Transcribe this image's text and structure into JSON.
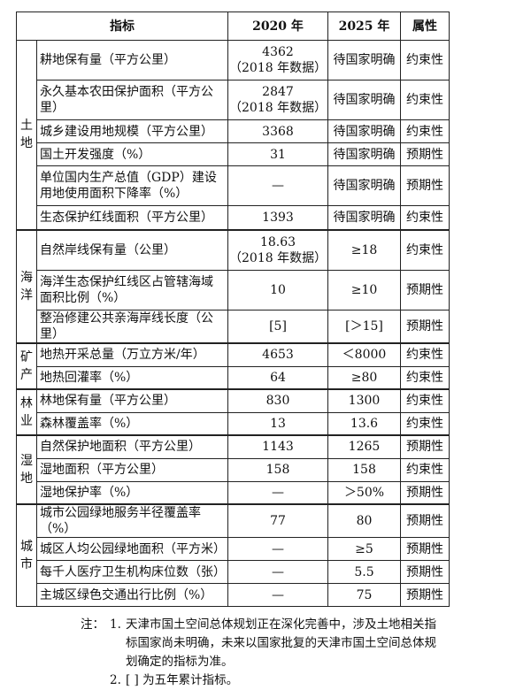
{
  "header": {
    "indicator": "指标",
    "y2020": "2020 年",
    "y2025": "2025 年",
    "attribute": "属性"
  },
  "sections": [
    {
      "category": "土地",
      "rows": [
        {
          "indicator": "耕地保有量（平方公里）",
          "v2020": "4362",
          "v2020_note": "（2018 年数据）",
          "v2025": "待国家明确",
          "attr": "约束性"
        },
        {
          "indicator": "永久基本农田保护面积（平方公里）",
          "v2020": "2847",
          "v2020_note": "（2018 年数据）",
          "v2025": "待国家明确",
          "attr": "约束性"
        },
        {
          "indicator": "城乡建设用地规模（平方公里）",
          "v2020": "3368",
          "v2025": "待国家明确",
          "attr": "约束性"
        },
        {
          "indicator": "国土开发强度（%）",
          "v2020": "31",
          "v2025": "待国家明确",
          "attr": "预期性"
        },
        {
          "indicator": "单位国内生产总值（GDP）建设用地使用面积下降率（%）",
          "v2020": "—",
          "v2025": "待国家明确",
          "attr": "预期性"
        },
        {
          "indicator": "生态保护红线面积（平方公里）",
          "v2020": "1393",
          "v2025": "待国家明确",
          "attr": "约束性"
        }
      ]
    },
    {
      "category": "海洋",
      "rows": [
        {
          "indicator": "自然岸线保有量（公里）",
          "v2020": "18.63",
          "v2020_note": "（2018 年数据）",
          "v2025": "≥18",
          "attr": "约束性"
        },
        {
          "indicator": "海洋生态保护红线区占管辖海域面积比例（%）",
          "v2020": "10",
          "v2025": "≥10",
          "attr": "预期性"
        },
        {
          "indicator": "整治修建公共亲海岸线长度（公里）",
          "v2020": "[5]",
          "v2025": "[＞15]",
          "attr": "预期性"
        }
      ]
    },
    {
      "category": "矿产",
      "rows": [
        {
          "indicator": "地热开采总量（万立方米/年）",
          "v2020": "4653",
          "v2025": "＜8000",
          "attr": "约束性"
        },
        {
          "indicator": "地热回灌率（%）",
          "v2020": "64",
          "v2025": "≥80",
          "attr": "约束性"
        }
      ]
    },
    {
      "category": "林业",
      "rows": [
        {
          "indicator": "林地保有量（平方公里）",
          "v2020": "830",
          "v2025": "1300",
          "attr": "约束性"
        },
        {
          "indicator": "森林覆盖率（%）",
          "v2020": "13",
          "v2025": "13.6",
          "attr": "约束性"
        }
      ]
    },
    {
      "category": "湿地",
      "rows": [
        {
          "indicator": "自然保护地面积（平方公里）",
          "v2020": "1143",
          "v2025": "1265",
          "attr": "预期性"
        },
        {
          "indicator": "湿地面积（平方公里）",
          "v2020": "158",
          "v2025": "158",
          "attr": "约束性"
        },
        {
          "indicator": "湿地保护率（%）",
          "v2020": "—",
          "v2025": "＞50%",
          "attr": "预期性"
        }
      ]
    },
    {
      "category": "城市",
      "rows": [
        {
          "indicator": "城市公园绿地服务半径覆盖率（%）",
          "v2020": "77",
          "v2025": "80",
          "attr": "预期性"
        },
        {
          "indicator": "城区人均公园绿地面积（平方米）",
          "v2020": "—",
          "v2025": "≥5",
          "attr": "预期性"
        },
        {
          "indicator": "每千人医疗卫生机构床位数（张）",
          "v2020": "—",
          "v2025": "5.5",
          "attr": "预期性"
        },
        {
          "indicator": "主城区绿色交通出行比例（%）",
          "v2020": "—",
          "v2025": "75",
          "attr": "预期性"
        }
      ]
    }
  ],
  "notes": {
    "label": "注：",
    "items": [
      {
        "num": "1.",
        "text": "天津市国土空间总体规划正在深化完善中，涉及土地相关指标国家尚未明确，未来以国家批复的天津市国土空间总体规划确定的指标为准。"
      },
      {
        "num": "2.",
        "text": "[ ] 为五年累计指标。"
      }
    ]
  }
}
